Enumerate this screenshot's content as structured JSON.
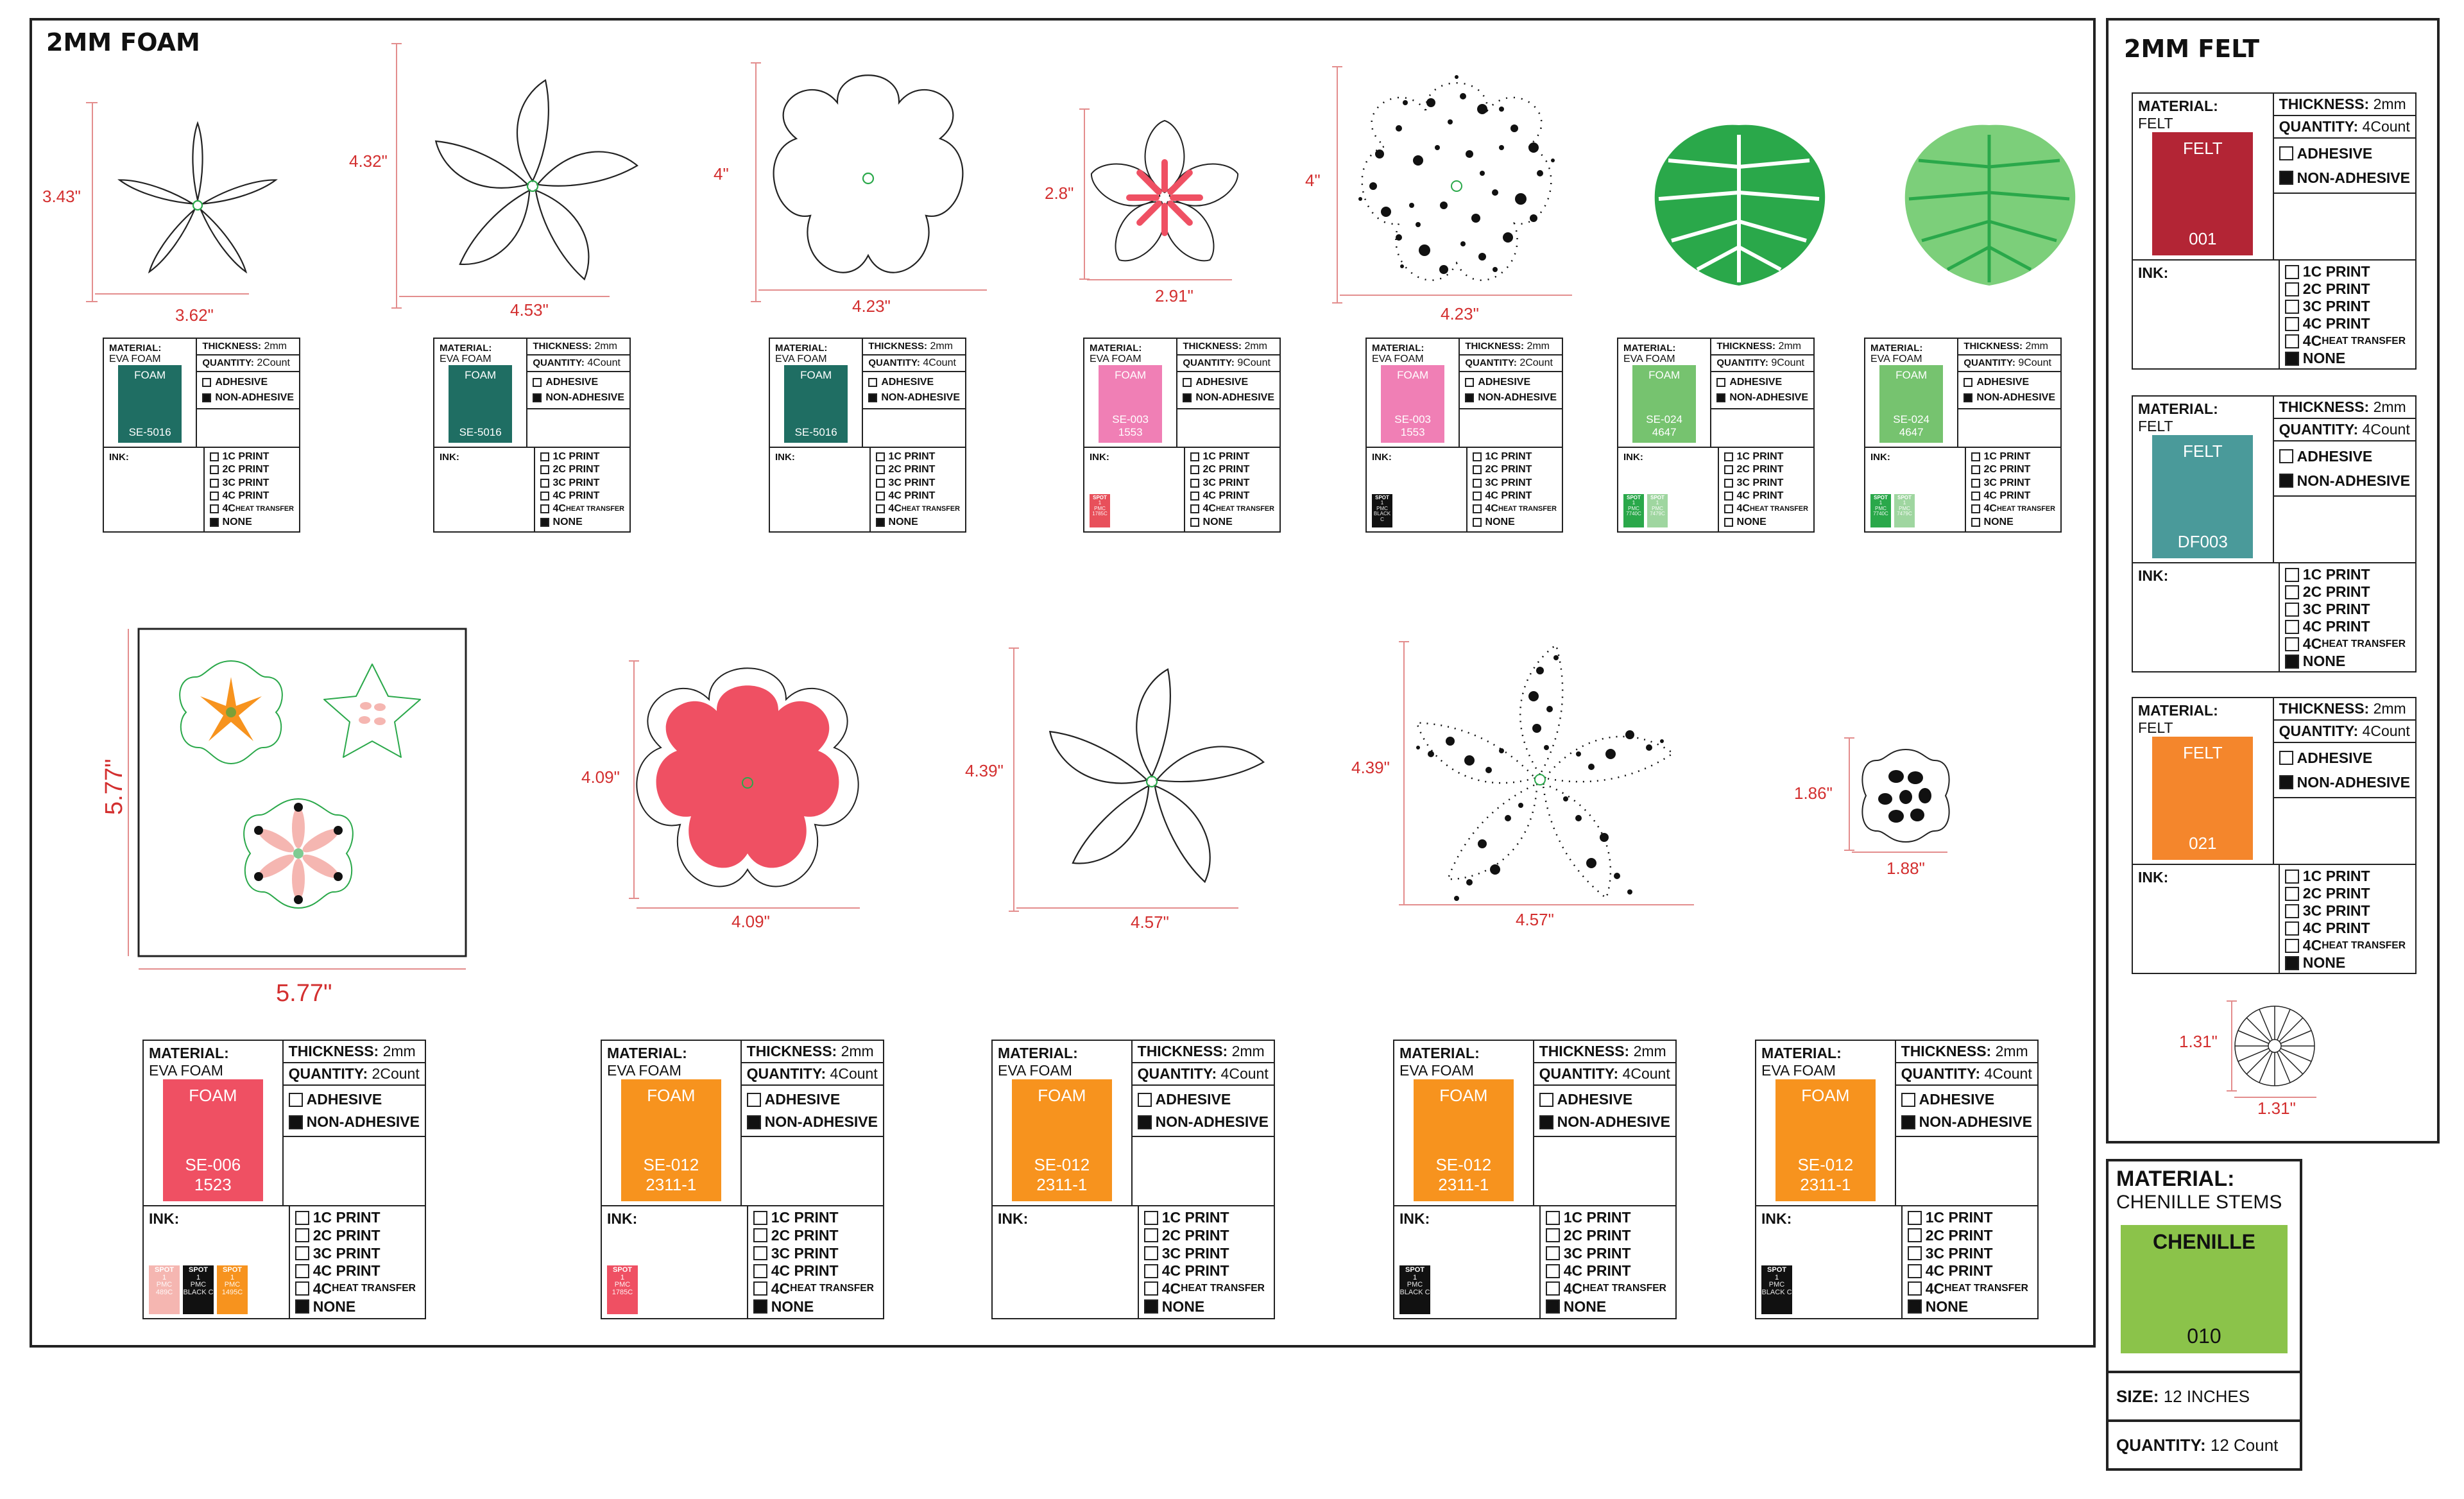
{
  "foam_section": {
    "title": "2MM FOAM"
  },
  "felt_section": {
    "title": "2MM FELT"
  },
  "labels": {
    "material": "MATERIAL:",
    "thickness": "THICKNESS:",
    "quantity": "QUANTITY:",
    "ink": "INK:",
    "adhesive": "ADHESIVE",
    "non_adhesive": "NON-ADHESIVE",
    "p1": "1C PRINT",
    "p2": "2C PRINT",
    "p3": "3C PRINT",
    "p4": "4C PRINT",
    "p5a": "4C",
    "p5b": "HEAT TRANSFER",
    "none": "NONE",
    "size": "SIZE:",
    "spot": "SPOT",
    "one": "1",
    "pmc": "PMC"
  },
  "foam_shapes": [
    {
      "name": "Pointed five-petal flower outline",
      "height": "3.43\"",
      "width": "3.62\""
    },
    {
      "name": "Large pointed five-petal flower outline",
      "height": "4.32\"",
      "width": "4.53\""
    },
    {
      "name": "Rounded five-petal flower outline",
      "height": "4\"",
      "width": "4.23\""
    },
    {
      "name": "Pink-centered plumeria flower",
      "height": "2.8\"",
      "width": "2.91\""
    },
    {
      "name": "Black-dotted rounded flower",
      "height": "4\"",
      "width": "4.23\""
    },
    {
      "name": "Dark green monstera leaf"
    },
    {
      "name": "Light green monstera leaf"
    },
    {
      "name": "Printed floral sheet",
      "height": "5.77\"",
      "width": "5.77\""
    },
    {
      "name": "Pink rounded flower",
      "height": "4.09\"",
      "width": "4.09\""
    },
    {
      "name": "Large pointed flower outline",
      "height": "4.39\"",
      "width": "4.57\""
    },
    {
      "name": "Black-dotted pointed flower",
      "height": "4.39\"",
      "width": "4.57\""
    },
    {
      "name": "Small flower center",
      "height": "1.86\"",
      "width": "1.88\""
    },
    {
      "name": "Felt starburst circle",
      "height": "1.31\"",
      "width": "1.31\""
    }
  ],
  "cards_top": [
    {
      "material": "EVA FOAM",
      "thickness_num": "2",
      "thickness_unit": "mm",
      "quantity_num": "2",
      "quantity_unit": "Count",
      "swatch_top": "FOAM",
      "swatch_code": "SE-5016",
      "swatch_color": "#1f6e63",
      "non_adhesive": true,
      "none": true,
      "chips": []
    },
    {
      "material": "EVA FOAM",
      "thickness_num": "2",
      "thickness_unit": "mm",
      "quantity_num": "4",
      "quantity_unit": "Count",
      "swatch_top": "FOAM",
      "swatch_code": "SE-5016",
      "swatch_color": "#1f6e63",
      "non_adhesive": true,
      "none": true,
      "chips": []
    },
    {
      "material": "EVA FOAM",
      "thickness_num": "2",
      "thickness_unit": "mm",
      "quantity_num": "4",
      "quantity_unit": "Count",
      "swatch_top": "FOAM",
      "swatch_code": "SE-5016",
      "swatch_color": "#1f6e63",
      "non_adhesive": true,
      "none": true,
      "chips": []
    },
    {
      "material": "EVA FOAM",
      "thickness_num": "2",
      "thickness_unit": "mm",
      "quantity_num": "9",
      "quantity_unit": "Count",
      "swatch_top": "FOAM",
      "swatch_code": "SE-003",
      "swatch_code2": "1553",
      "swatch_color": "#f07fb5",
      "non_adhesive": true,
      "none": false,
      "chips": [
        {
          "color": "#e8505b",
          "pmc": "1785C"
        }
      ]
    },
    {
      "material": "EVA FOAM",
      "thickness_num": "2",
      "thickness_unit": "mm",
      "quantity_num": "2",
      "quantity_unit": "Count",
      "swatch_top": "FOAM",
      "swatch_code": "SE-003",
      "swatch_code2": "1553",
      "swatch_color": "#f07fb5",
      "non_adhesive": true,
      "none": false,
      "chips": [
        {
          "color": "#111111",
          "pmc": "BLACK C"
        }
      ]
    },
    {
      "material": "EVA FOAM",
      "thickness_num": "2",
      "thickness_unit": "mm",
      "quantity_num": "9",
      "quantity_unit": "Count",
      "swatch_top": "FOAM",
      "swatch_code": "SE-024",
      "swatch_code2": "4647",
      "swatch_color": "#76c36f",
      "non_adhesive": true,
      "none": false,
      "chips": [
        {
          "color": "#2aa84a",
          "pmc": "7740C"
        },
        {
          "color": "#9fd6a0",
          "pmc": "7479C"
        }
      ]
    },
    {
      "material": "EVA FOAM",
      "thickness_num": "2",
      "thickness_unit": "mm",
      "quantity_num": "9",
      "quantity_unit": "Count",
      "swatch_top": "FOAM",
      "swatch_code": "SE-024",
      "swatch_code2": "4647",
      "swatch_color": "#76c36f",
      "non_adhesive": true,
      "none": false,
      "chips": [
        {
          "color": "#2aa84a",
          "pmc": "7740C"
        },
        {
          "color": "#9fd6a0",
          "pmc": "7479C"
        }
      ]
    }
  ],
  "cards_bottom": [
    {
      "material": "EVA FOAM",
      "thickness_num": "2",
      "thickness_unit": "mm",
      "quantity_num": "2",
      "quantity_unit": "Count",
      "swatch_top": "FOAM",
      "swatch_code": "SE-006",
      "swatch_code2": "1523",
      "swatch_color": "#ef5063",
      "non_adhesive": true,
      "none": true,
      "chips": [
        {
          "color": "#f5b6b1",
          "pmc": "489C"
        },
        {
          "color": "#111111",
          "pmc": "BLACK C"
        },
        {
          "color": "#f7931e",
          "pmc": "1495C"
        }
      ]
    },
    {
      "material": "EVA FOAM",
      "thickness_num": "2",
      "thickness_unit": "mm",
      "quantity_num": "4",
      "quantity_unit": "Count",
      "swatch_top": "FOAM",
      "swatch_code": "SE-012",
      "swatch_code2": "2311-1",
      "swatch_color": "#f7931e",
      "non_adhesive": true,
      "none": true,
      "chips": [
        {
          "color": "#ef5063",
          "pmc": "1785C"
        }
      ]
    },
    {
      "material": "EVA FOAM",
      "thickness_num": "2",
      "thickness_unit": "mm",
      "quantity_num": "4",
      "quantity_unit": "Count",
      "swatch_top": "FOAM",
      "swatch_code": "SE-012",
      "swatch_code2": "2311-1",
      "swatch_color": "#f7931e",
      "non_adhesive": true,
      "none": true,
      "chips": []
    },
    {
      "material": "EVA FOAM",
      "thickness_num": "2",
      "thickness_unit": "mm",
      "quantity_num": "4",
      "quantity_unit": "Count",
      "swatch_top": "FOAM",
      "swatch_code": "SE-012",
      "swatch_code2": "2311-1",
      "swatch_color": "#f7931e",
      "non_adhesive": true,
      "none": true,
      "chips": [
        {
          "color": "#111111",
          "pmc": "BLACK C"
        }
      ]
    },
    {
      "material": "EVA FOAM",
      "thickness_num": "2",
      "thickness_unit": "mm",
      "quantity_num": "4",
      "quantity_unit": "Count",
      "swatch_top": "FOAM",
      "swatch_code": "SE-012",
      "swatch_code2": "2311-1",
      "swatch_color": "#f7931e",
      "non_adhesive": true,
      "none": true,
      "chips": [
        {
          "color": "#111111",
          "pmc": "BLACK C"
        }
      ]
    }
  ],
  "felt_cards": [
    {
      "material": "FELT",
      "thickness_num": "2",
      "thickness_unit": "mm",
      "quantity_num": "4",
      "quantity_unit": "Count",
      "swatch_top": "FELT",
      "swatch_code": "001",
      "swatch_color": "#b32535",
      "non_adhesive": true,
      "none": true
    },
    {
      "material": "FELT",
      "thickness_num": "2",
      "thickness_unit": "mm",
      "quantity_num": "4",
      "quantity_unit": "Count",
      "swatch_top": "FELT",
      "swatch_code": "DF003",
      "swatch_color": "#4a9a9a",
      "non_adhesive": true,
      "none": true
    },
    {
      "material": "FELT",
      "thickness_num": "2",
      "thickness_unit": "mm",
      "quantity_num": "4",
      "quantity_unit": "Count",
      "swatch_top": "FELT",
      "swatch_code": "021",
      "swatch_color": "#f4862c",
      "non_adhesive": true,
      "none": true
    }
  ],
  "chenille": {
    "material": "CHENILLE STEMS",
    "swatch_top": "CHENILLE",
    "swatch_code": "010",
    "swatch_color": "#8bc34a",
    "size": "12 INCHES",
    "quantity": "12 Count"
  },
  "colors": {
    "dim": "#d32f2f",
    "pink": "#ef5063",
    "green_dark": "#2aa84a",
    "green_light": "#7ccf7a",
    "orange": "#f7931e"
  }
}
